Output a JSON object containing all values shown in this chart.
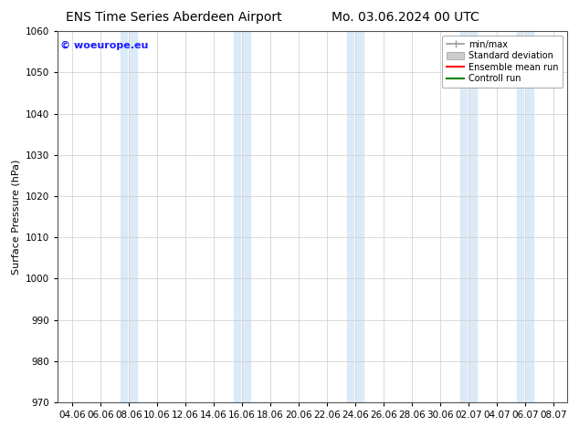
{
  "title_left": "ENS Time Series Aberdeen Airport",
  "title_right": "Mo. 03.06.2024 00 UTC",
  "ylabel": "Surface Pressure (hPa)",
  "ylim": [
    970,
    1060
  ],
  "yticks": [
    970,
    980,
    990,
    1000,
    1010,
    1020,
    1030,
    1040,
    1050,
    1060
  ],
  "xlabels": [
    "04.06",
    "06.06",
    "08.06",
    "10.06",
    "12.06",
    "14.06",
    "16.06",
    "18.06",
    "20.06",
    "22.06",
    "24.06",
    "26.06",
    "28.06",
    "30.06",
    "02.07",
    "04.07",
    "06.07",
    "08.07"
  ],
  "copyright_text": "© woeurope.eu",
  "copyright_color": "#1a1aff",
  "bg_color": "#ffffff",
  "plot_bg_color": "#ffffff",
  "shade_color": "#daeaf7",
  "shade_alpha": 1.0,
  "grid_color": "#cccccc",
  "legend_entries": [
    "min/max",
    "Standard deviation",
    "Ensemble mean run",
    "Controll run"
  ],
  "legend_line_color": "#999999",
  "legend_patch_color": "#cccccc",
  "legend_red": "#ff0000",
  "legend_green": "#008000",
  "title_fontsize": 10,
  "tick_fontsize": 7.5,
  "ylabel_fontsize": 8,
  "shade_band_indices": [
    2,
    3,
    6,
    7,
    10,
    11,
    14,
    15,
    16,
    17
  ]
}
